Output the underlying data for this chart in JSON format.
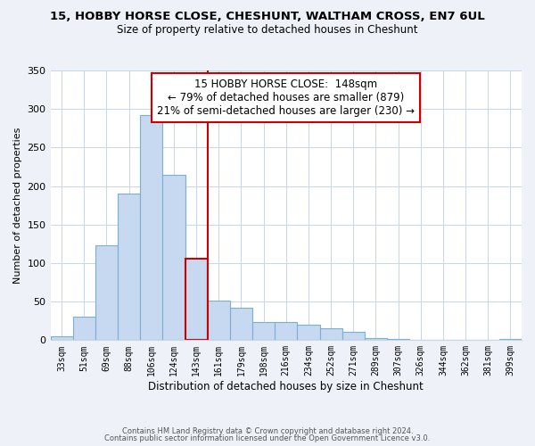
{
  "title_line1": "15, HOBBY HORSE CLOSE, CHESHUNT, WALTHAM CROSS, EN7 6UL",
  "title_line2": "Size of property relative to detached houses in Cheshunt",
  "xlabel": "Distribution of detached houses by size in Cheshunt",
  "ylabel": "Number of detached properties",
  "bar_labels": [
    "33sqm",
    "51sqm",
    "69sqm",
    "88sqm",
    "106sqm",
    "124sqm",
    "143sqm",
    "161sqm",
    "179sqm",
    "198sqm",
    "216sqm",
    "234sqm",
    "252sqm",
    "271sqm",
    "289sqm",
    "307sqm",
    "326sqm",
    "344sqm",
    "362sqm",
    "381sqm",
    "399sqm"
  ],
  "bar_values": [
    5,
    30,
    123,
    190,
    292,
    214,
    106,
    51,
    42,
    24,
    23,
    20,
    16,
    11,
    3,
    1,
    0,
    0,
    0,
    0,
    2
  ],
  "bar_color": "#c6d9f0",
  "bar_edge_color": "#7bafd4",
  "highlight_bar_index": 6,
  "highlight_bar_edge_color": "#cc0000",
  "vline_x": 6.5,
  "vline_color": "#cc0000",
  "annotation_title": "15 HOBBY HORSE CLOSE:  148sqm",
  "annotation_line1": "← 79% of detached houses are smaller (879)",
  "annotation_line2": "21% of semi-detached houses are larger (230) →",
  "annotation_box_color": "#ffffff",
  "annotation_box_edge_color": "#cc0000",
  "ylim": [
    0,
    350
  ],
  "yticks": [
    0,
    50,
    100,
    150,
    200,
    250,
    300,
    350
  ],
  "footnote1": "Contains HM Land Registry data © Crown copyright and database right 2024.",
  "footnote2": "Contains public sector information licensed under the Open Government Licence v3.0.",
  "background_color": "#eef2f8",
  "plot_background_color": "#ffffff",
  "grid_color": "#c8d4e8"
}
